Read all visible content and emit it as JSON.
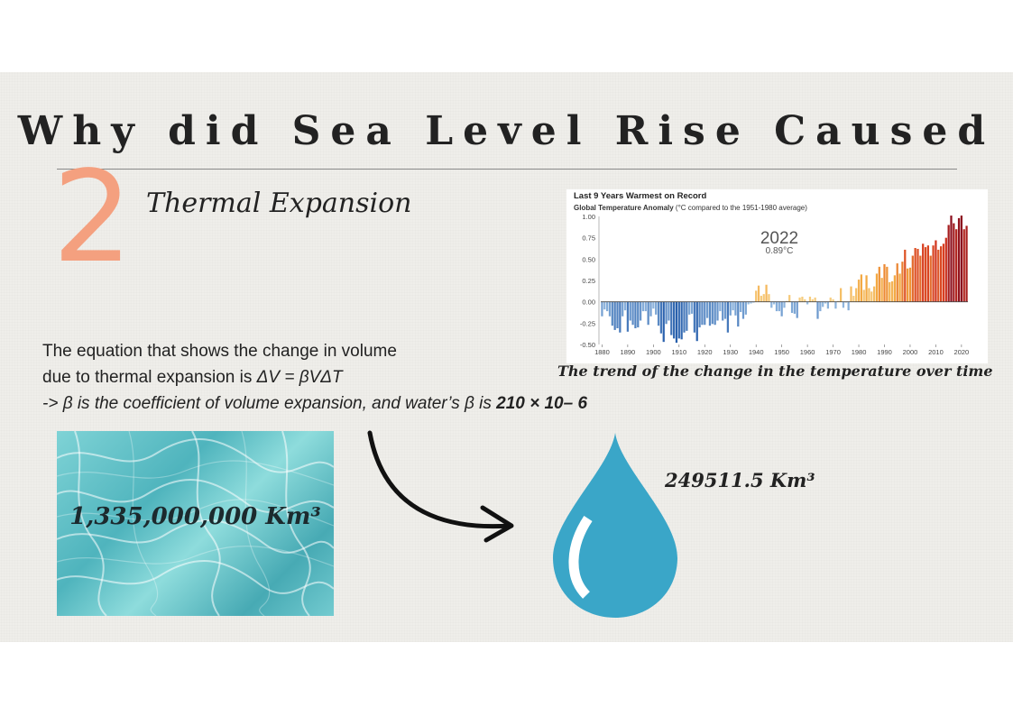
{
  "slide": {
    "title": "Why did Sea Level Rise Caused",
    "section_number": "2",
    "section_heading": "Thermal Expansion"
  },
  "equation": {
    "line1": "The equation that shows the change in volume",
    "line2_prefix": "due to thermal expansion is ",
    "formula": "ΔV = βVΔT",
    "line3_prefix": "-> β is the coefficient of volume expansion, and water’s β is ",
    "beta_value": "210 × 10– 6"
  },
  "chart": {
    "caption": "The trend of the change in the temperature over time"
  },
  "chart_data": {
    "type": "bar",
    "title": "Last 9 Years Warmest on Record",
    "subtitle_bold": "Global Temperature Anomaly",
    "subtitle_rest": " (°C compared to the 1951-1980 average)",
    "highlight_year": "2022",
    "highlight_value": "0.89°C",
    "xlabel": "",
    "ylabel": "",
    "ylim": [
      -0.5,
      1.0
    ],
    "yticks": [
      "-0.50",
      "-0.25",
      "0.00",
      "0.25",
      "0.50",
      "0.75",
      "1.00"
    ],
    "xticks": [
      "1880",
      "1890",
      "1900",
      "1910",
      "1920",
      "1930",
      "1940",
      "1950",
      "1960",
      "1970",
      "1980",
      "1990",
      "2000",
      "2010",
      "2020"
    ],
    "years_start": 1880,
    "values": [
      -0.17,
      -0.09,
      -0.11,
      -0.17,
      -0.28,
      -0.33,
      -0.31,
      -0.36,
      -0.17,
      -0.1,
      -0.35,
      -0.22,
      -0.27,
      -0.31,
      -0.3,
      -0.22,
      -0.11,
      -0.11,
      -0.27,
      -0.17,
      -0.08,
      -0.15,
      -0.28,
      -0.37,
      -0.47,
      -0.26,
      -0.22,
      -0.39,
      -0.43,
      -0.48,
      -0.43,
      -0.44,
      -0.36,
      -0.34,
      -0.15,
      -0.14,
      -0.36,
      -0.46,
      -0.3,
      -0.27,
      -0.27,
      -0.19,
      -0.28,
      -0.26,
      -0.27,
      -0.22,
      -0.11,
      -0.22,
      -0.2,
      -0.36,
      -0.16,
      -0.1,
      -0.16,
      -0.29,
      -0.12,
      -0.2,
      -0.15,
      -0.03,
      -0.02,
      -0.01,
      0.13,
      0.19,
      0.07,
      0.09,
      0.2,
      0.09,
      -0.07,
      -0.03,
      -0.11,
      -0.11,
      -0.17,
      -0.07,
      0.01,
      0.08,
      -0.13,
      -0.14,
      -0.19,
      0.05,
      0.06,
      0.03,
      -0.03,
      0.06,
      0.03,
      0.05,
      -0.2,
      -0.11,
      -0.06,
      -0.02,
      -0.08,
      0.05,
      0.03,
      -0.08,
      0.01,
      0.16,
      -0.07,
      -0.01,
      -0.1,
      0.18,
      0.07,
      0.16,
      0.26,
      0.32,
      0.14,
      0.31,
      0.16,
      0.12,
      0.18,
      0.33,
      0.41,
      0.28,
      0.44,
      0.41,
      0.23,
      0.24,
      0.31,
      0.45,
      0.33,
      0.47,
      0.61,
      0.39,
      0.4,
      0.54,
      0.63,
      0.62,
      0.54,
      0.68,
      0.64,
      0.66,
      0.54,
      0.66,
      0.72,
      0.61,
      0.65,
      0.68,
      0.75,
      0.9,
      1.01,
      0.92,
      0.85,
      0.98,
      1.01,
      0.85,
      0.89
    ]
  },
  "water_image": {
    "volume_label": "1,335,000,000 Km³"
  },
  "result": {
    "volume_label": "249511.5 Km³"
  },
  "icons": {
    "arrow": "curved-arrow-icon",
    "drop": "water-drop-icon"
  },
  "colors": {
    "accent_number": "#f4a07f",
    "drop": "#3aa6c8",
    "cold": "#2f6fb5",
    "warm": "#b8211d"
  }
}
